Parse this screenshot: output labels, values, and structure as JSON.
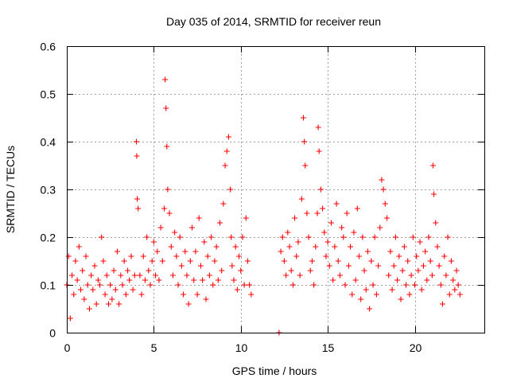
{
  "chart_data": {
    "type": "scatter",
    "title": "Day 035 of 2014, SRMTID for receiver reun",
    "xlabel": "GPS time / hours",
    "ylabel": "SRMTID / TECUs",
    "xlim": [
      0,
      24
    ],
    "ylim": [
      0,
      0.6
    ],
    "xticks": [
      0,
      5,
      10,
      15,
      20
    ],
    "xtick_labels": [
      "0",
      "5",
      "10",
      "15",
      "20"
    ],
    "yticks": [
      0,
      0.1,
      0.2,
      0.3,
      0.4,
      0.5,
      0.6
    ],
    "ytick_labels": [
      "0",
      "0.1",
      "0.2",
      "0.3",
      "0.4",
      "0.5",
      "0.6"
    ],
    "grid": true,
    "marker": "+",
    "color": "#ff0000",
    "series": [
      {
        "name": "SRMTID",
        "x": [
          0.0,
          0.1,
          0.2,
          0.3,
          0.4,
          0.5,
          0.6,
          0.7,
          0.8,
          0.9,
          1.0,
          1.1,
          1.2,
          1.3,
          1.4,
          1.5,
          1.6,
          1.7,
          1.8,
          1.9,
          2.0,
          2.1,
          2.2,
          2.3,
          2.4,
          2.5,
          2.6,
          2.7,
          2.8,
          2.9,
          3.0,
          3.1,
          3.2,
          3.3,
          3.4,
          3.5,
          3.6,
          3.7,
          3.8,
          3.9,
          4.0,
          4.02,
          4.05,
          4.1,
          4.2,
          4.3,
          4.4,
          4.5,
          4.6,
          4.7,
          4.8,
          4.9,
          5.0,
          5.1,
          5.2,
          5.3,
          5.4,
          5.5,
          5.6,
          5.65,
          5.7,
          5.75,
          5.8,
          5.9,
          6.0,
          6.1,
          6.2,
          6.3,
          6.4,
          6.5,
          6.6,
          6.7,
          6.8,
          6.9,
          7.0,
          7.1,
          7.2,
          7.3,
          7.4,
          7.5,
          7.6,
          7.7,
          7.8,
          7.9,
          8.0,
          8.1,
          8.2,
          8.3,
          8.4,
          8.5,
          8.6,
          8.7,
          8.8,
          8.9,
          9.0,
          9.1,
          9.2,
          9.3,
          9.4,
          9.45,
          9.5,
          9.6,
          9.7,
          9.8,
          9.9,
          10.0,
          10.1,
          10.2,
          10.3,
          10.4,
          10.5,
          10.6,
          12.2,
          12.3,
          12.4,
          12.5,
          12.6,
          12.7,
          12.8,
          12.9,
          13.0,
          13.1,
          13.2,
          13.3,
          13.4,
          13.5,
          13.6,
          13.65,
          13.7,
          13.8,
          13.9,
          14.0,
          14.1,
          14.2,
          14.3,
          14.4,
          14.45,
          14.5,
          14.6,
          14.7,
          14.8,
          14.9,
          15.0,
          15.1,
          15.2,
          15.3,
          15.4,
          15.5,
          15.6,
          15.7,
          15.8,
          15.9,
          16.0,
          16.1,
          16.2,
          16.3,
          16.4,
          16.5,
          16.6,
          16.7,
          16.8,
          16.9,
          17.0,
          17.1,
          17.2,
          17.3,
          17.4,
          17.5,
          17.6,
          17.7,
          17.8,
          17.9,
          18.0,
          18.1,
          18.2,
          18.3,
          18.4,
          18.5,
          18.6,
          18.7,
          18.8,
          18.9,
          19.0,
          19.1,
          19.2,
          19.3,
          19.4,
          19.5,
          19.6,
          19.7,
          19.8,
          19.9,
          20.0,
          20.1,
          20.2,
          20.3,
          20.4,
          20.5,
          20.6,
          20.7,
          20.8,
          20.9,
          21.0,
          21.05,
          21.1,
          21.2,
          21.3,
          21.4,
          21.5,
          21.6,
          21.7,
          21.8,
          21.9,
          22.0,
          22.1,
          22.2,
          22.3,
          22.4,
          22.5,
          22.6
        ],
        "y": [
          0.1,
          0.16,
          0.03,
          0.12,
          0.08,
          0.15,
          0.11,
          0.18,
          0.09,
          0.13,
          0.07,
          0.16,
          0.1,
          0.05,
          0.12,
          0.09,
          0.14,
          0.06,
          0.11,
          0.1,
          0.2,
          0.15,
          0.08,
          0.12,
          0.06,
          0.1,
          0.07,
          0.13,
          0.09,
          0.17,
          0.06,
          0.12,
          0.1,
          0.15,
          0.08,
          0.13,
          0.11,
          0.16,
          0.09,
          0.12,
          0.4,
          0.37,
          0.28,
          0.26,
          0.12,
          0.08,
          0.16,
          0.11,
          0.2,
          0.13,
          0.1,
          0.15,
          0.19,
          0.12,
          0.17,
          0.11,
          0.22,
          0.15,
          0.26,
          0.53,
          0.47,
          0.39,
          0.3,
          0.25,
          0.18,
          0.12,
          0.21,
          0.16,
          0.1,
          0.2,
          0.14,
          0.08,
          0.17,
          0.12,
          0.06,
          0.15,
          0.22,
          0.11,
          0.17,
          0.08,
          0.24,
          0.14,
          0.11,
          0.19,
          0.07,
          0.16,
          0.12,
          0.2,
          0.1,
          0.15,
          0.18,
          0.11,
          0.23,
          0.13,
          0.27,
          0.35,
          0.38,
          0.41,
          0.3,
          0.2,
          0.14,
          0.11,
          0.18,
          0.09,
          0.16,
          0.13,
          0.2,
          0.1,
          0.24,
          0.15,
          0.1,
          0.08,
          0.0,
          0.17,
          0.2,
          0.15,
          0.12,
          0.21,
          0.18,
          0.13,
          0.1,
          0.24,
          0.16,
          0.19,
          0.12,
          0.28,
          0.45,
          0.4,
          0.35,
          0.25,
          0.2,
          0.13,
          0.15,
          0.1,
          0.18,
          0.25,
          0.43,
          0.38,
          0.3,
          0.26,
          0.21,
          0.16,
          0.19,
          0.14,
          0.23,
          0.11,
          0.18,
          0.27,
          0.15,
          0.12,
          0.22,
          0.2,
          0.1,
          0.25,
          0.14,
          0.18,
          0.08,
          0.21,
          0.11,
          0.26,
          0.16,
          0.07,
          0.2,
          0.13,
          0.09,
          0.17,
          0.05,
          0.15,
          0.1,
          0.2,
          0.08,
          0.14,
          0.22,
          0.32,
          0.3,
          0.27,
          0.24,
          0.12,
          0.17,
          0.09,
          0.14,
          0.2,
          0.11,
          0.16,
          0.07,
          0.13,
          0.18,
          0.1,
          0.15,
          0.08,
          0.12,
          0.2,
          0.1,
          0.16,
          0.13,
          0.19,
          0.09,
          0.14,
          0.17,
          0.11,
          0.2,
          0.15,
          0.12,
          0.35,
          0.29,
          0.23,
          0.18,
          0.14,
          0.1,
          0.06,
          0.16,
          0.12,
          0.2,
          0.08,
          0.15,
          0.11,
          0.09,
          0.13,
          0.1,
          0.08
        ]
      }
    ]
  }
}
